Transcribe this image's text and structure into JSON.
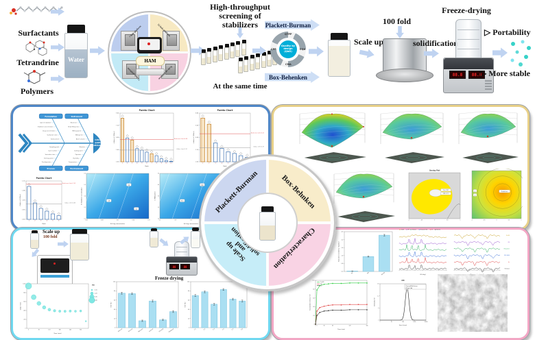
{
  "figure": {
    "inputs": {
      "items": [
        {
          "label": "Surfactants"
        },
        {
          "label": "Tetrandrine"
        },
        {
          "label": "Polymers"
        }
      ]
    },
    "water": {
      "label": "Water"
    },
    "ham": {
      "center": "HAM",
      "quadrants": [
        {
          "label": "7-hole platform"
        },
        {
          "label": "12-hole platform"
        },
        {
          "label": "72-hole platform"
        },
        {
          "label": "Scale-up platform"
        }
      ]
    },
    "hts": {
      "title_lines": [
        "High-throughput",
        "screening of",
        "stabilizers"
      ],
      "caption": "At the same time"
    },
    "doe": {
      "top_arrow": "Plackett-Burman",
      "bottom_arrow": "Box-Behenken",
      "qbd_center_lines": [
        "Quality by",
        "design",
        "(QbD)"
      ],
      "qbd_segments": [
        "QTPP",
        "CQA",
        "CMA",
        "CPP"
      ]
    },
    "scaleup": {
      "label": "Scale up",
      "fold": "100 fold",
      "solidification": "solidification",
      "freeze_drying": "Freeze-drying",
      "bullet": "▷",
      "outcomes": [
        {
          "label": "Portability"
        },
        {
          "label": "More stable"
        }
      ]
    },
    "panel": {
      "quadrants": [
        {
          "label": "Plackett-Burman"
        },
        {
          "label": "Box-Behnken"
        },
        {
          "label": "Scale up and solidification",
          "lines": [
            "Scale up",
            "and",
            "solidification"
          ]
        },
        {
          "label": "Characterization"
        }
      ]
    },
    "bl_flow": {
      "scale_up": "Scale up",
      "fold": "100 fold",
      "freeze_drying": "Freeze drying"
    },
    "fishbone": {
      "head_lines": [
        "Critical",
        "quality",
        "attributes"
      ],
      "branches": [
        {
          "pos": "top",
          "label": "Formulation",
          "items": [
            "Type of stabilizer",
            "Stabilizer concentration",
            "Drug concentration",
            "Surfactant ratio",
            "Solid content"
          ]
        },
        {
          "pos": "top",
          "label": "Instrument",
          "items": [
            "Bead size",
            "Bead filling ratio",
            "Milling speed",
            "Milling time",
            "Batch volume"
          ]
        },
        {
          "pos": "bottom",
          "label": "Process",
          "items": [
            "Pre-dispersion",
            "Stirring speed",
            "Sonication time",
            "Cycle number",
            "Sampling point"
          ]
        },
        {
          "pos": "bottom",
          "label": "Environment",
          "items": [
            "Temperature",
            "Humidity",
            "Operator",
            "Cooling water",
            "Vibration"
          ]
        }
      ]
    }
  },
  "chart_data": [
    {
      "type": "pareto",
      "title": "Pareto Chart",
      "ylabel": "t-Value of |Effect|",
      "xlabel": "Rank",
      "values": [
        8.6,
        4.7,
        4.3,
        2.6,
        2.3,
        1.9,
        1.6,
        1.2,
        0.6,
        0.25,
        0.1
      ],
      "bar_colors": [
        "o",
        "b",
        "o",
        "b",
        "b",
        "b",
        "o",
        "b",
        "b",
        "b",
        "b"
      ],
      "bonferroni": 4.38,
      "bonferroni_label": "Bonferroni Limit 4.38",
      "tvalue": 2.31,
      "tvalue_label": "t-Value Limit 2.31",
      "ylim": 9.6
    },
    {
      "type": "pareto",
      "title": "Pareto Chart",
      "ylabel": "t-Value of |Effect|",
      "xlabel": "Rank",
      "values": [
        7.9,
        6.8,
        3.4,
        2.4,
        1.8,
        1.5,
        1.1,
        0.8
      ],
      "bar_colors": [
        "o",
        "o",
        "b",
        "b",
        "b",
        "b",
        "b",
        "b"
      ],
      "bonferroni": 5.07,
      "bonferroni_label": "Bonferroni Limit 5.07",
      "tvalue": 2.57,
      "tvalue_label": "t-Value Limit 2.57",
      "ylim": 8.8
    },
    {
      "type": "pareto",
      "title": "Pareto Chart",
      "ylabel": "t-Value of |Effect|",
      "xlabel": "Rank",
      "values": [
        1.8,
        0.9,
        0.6,
        0.45,
        0.3,
        0.2
      ],
      "bar_colors": [
        "b",
        "b",
        "b",
        "b",
        "b",
        "b"
      ],
      "bonferroni": 1.92,
      "bonferroni_label": "Bonferroni Limit 1.92",
      "tvalue": 0.85,
      "tvalue_label": "t-Value Limit 0.85",
      "ylim": 2.1
    },
    {
      "type": "contour",
      "xlabel": "A: Drug concentration",
      "ylabel": "B: Stabilizer concentration",
      "labels": [
        "64",
        "58",
        "52"
      ],
      "x_ticks": [
        "0.05",
        "0.08",
        "0.11",
        "0.14",
        "0.17"
      ],
      "y_ticks": [
        "0.2",
        "0.3",
        "0.4",
        "0.5",
        "0.6"
      ]
    },
    {
      "type": "contour",
      "xlabel": "A: Drug concentration",
      "ylabel": "C: Milling time",
      "labels": [
        "340",
        "310",
        "280"
      ],
      "x_ticks": [
        "0.2",
        "0.3",
        "0.4",
        "0.5",
        "0.6"
      ],
      "y_ticks": [
        "10",
        "20",
        "30",
        "40",
        "50"
      ]
    },
    {
      "type": "surface",
      "depth": 1.0
    },
    {
      "type": "surface",
      "depth": 0.45
    },
    {
      "type": "surface",
      "depth": 0.35
    },
    {
      "type": "surface",
      "depth": 0.4
    },
    {
      "type": "overlay",
      "title": "Overlay Plot",
      "flags": [
        "Size 182",
        "PDI 0.21"
      ],
      "x_ticks": [
        "-1",
        "-0.5",
        "0",
        "0.5",
        "1"
      ]
    },
    {
      "type": "contour2",
      "chips": [
        "-1",
        "0"
      ],
      "flag": "Prediction",
      "x_ticks": [
        "-1",
        "-0.5",
        "0",
        "0.5",
        "1"
      ]
    },
    {
      "type": "bubble",
      "xlabel": "Time (min)",
      "ylabel": "Z-Ave (nm)",
      "x": [
        0,
        30,
        60,
        90,
        120,
        150,
        180,
        210,
        240,
        270,
        300,
        330
      ],
      "y": [
        950,
        700,
        560,
        470,
        420,
        395,
        385,
        383,
        388,
        384,
        390,
        160
      ],
      "pdi": [
        0.42,
        0.35,
        0.3,
        0.27,
        0.24,
        0.22,
        0.21,
        0.21,
        0.21,
        0.2,
        0.2,
        0.16
      ],
      "legend_title": "PDI",
      "legend_values": [
        "0.15",
        "0.25",
        "0.35",
        "0.45"
      ]
    },
    {
      "type": "bars",
      "ylabel": "RDI (%)",
      "ylim": 100,
      "categories": [
        "Glucose",
        "Sucrose",
        "Mannitol",
        "Lactose",
        "PVP K30",
        "Trehalose"
      ],
      "values": [
        75,
        74,
        15,
        58,
        17,
        35
      ],
      "errors": [
        2,
        2,
        1.5,
        2,
        1.5,
        2
      ]
    },
    {
      "type": "bars",
      "ylabel": "RDI (%)",
      "ylim": 100,
      "categories": [
        "1:1",
        "1:2",
        "1:3",
        "1:4",
        "1:5",
        "1:6"
      ],
      "values": [
        70,
        78,
        51,
        83,
        62,
        58
      ],
      "errors": [
        2,
        2,
        2,
        2,
        2,
        2
      ]
    },
    {
      "type": "bars",
      "ylabel": "Saturated solubility (mg/mL)",
      "ylim": 4,
      "decimals": 1,
      "categories": [
        "Tet",
        "PM",
        "Tet-NS"
      ],
      "values": [
        0.04,
        1.5,
        3.65
      ],
      "errors": [
        0.01,
        0.05,
        0.08
      ]
    },
    {
      "type": "stack",
      "mode": "xrd",
      "xlabel": "2θ (deg)",
      "legend": true,
      "series": [
        {
          "name": "Tet-NS",
          "color": "#c9a227"
        },
        {
          "name": "PM",
          "color": "#9b59d0"
        },
        {
          "name": "Trehalose",
          "color": "#2fae5e"
        },
        {
          "name": "Poloxamer 188",
          "color": "#3a6fd8"
        },
        {
          "name": "Tet",
          "color": "#e04040"
        },
        {
          "name": "Mannitol",
          "color": "#444444"
        }
      ]
    },
    {
      "type": "stack",
      "mode": "ftir",
      "xlabel": "Wavenumber (cm⁻¹)",
      "labels_right": true,
      "series": [
        {
          "name": "Tet-NS",
          "color": "#c9a227"
        },
        {
          "name": "PM",
          "color": "#9b59d0"
        },
        {
          "name": "Poloxamer",
          "color": "#2fae5e"
        },
        {
          "name": "PEG 4000",
          "color": "#3a6fd8"
        },
        {
          "name": "Tet",
          "color": "#e04040"
        },
        {
          "name": "Trehalose",
          "color": "#444444"
        }
      ]
    },
    {
      "type": "lines",
      "xlabel": "Time (min)",
      "ylabel": "Cumulative release (%)",
      "ylim": 100,
      "x": [
        0,
        5,
        15,
        30,
        45,
        60,
        90,
        120,
        150,
        180
      ],
      "series": [
        {
          "name": "Tet-NS",
          "color": "#2ecc40",
          "values": [
            0,
            78,
            88,
            91,
            92,
            93,
            93,
            94,
            94,
            94
          ]
        },
        {
          "name": "PM",
          "color": "#e04040",
          "values": [
            0,
            30,
            38,
            41,
            43,
            44,
            44,
            45,
            45,
            45
          ]
        },
        {
          "name": "Tet",
          "color": "#333333",
          "values": [
            0,
            20,
            27,
            30,
            31,
            32,
            32,
            33,
            33,
            33
          ]
        }
      ]
    },
    {
      "type": "peak",
      "title": "CM",
      "xlabel": "Size (d.nm)",
      "ylabel": "Intensity (%)",
      "ylim": 18,
      "center": 230,
      "height": 16,
      "annotations": [
        "Z-ave=256.4 d.nm",
        "PDI=0.146"
      ]
    },
    {
      "type": "sem",
      "label": "SEM image"
    }
  ]
}
